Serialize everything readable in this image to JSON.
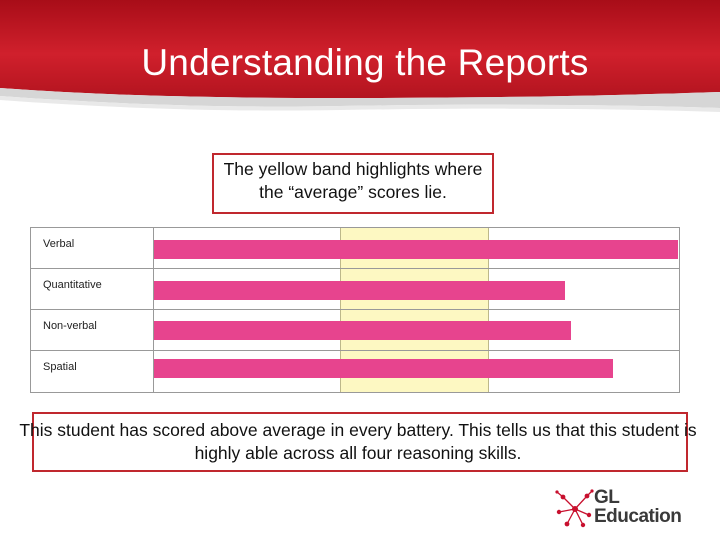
{
  "slide": {
    "title": "Understanding the Reports",
    "callout_top": "The yellow band highlights where the “average” scores lie.",
    "callout_bottom": "This student has scored above average in every battery. This tells us that this student is highly able across all four reasoning skills.",
    "logo": {
      "line1": "GL",
      "line2": "Education"
    },
    "colors": {
      "banner": "#c8102e",
      "bar": "#e7448e",
      "band": "#fdf8c2",
      "callout_border": "#c0282e"
    }
  },
  "chart_data": {
    "type": "bar",
    "orientation": "horizontal",
    "categories": [
      "Verbal",
      "Quantitative",
      "Non-verbal",
      "Spatial"
    ],
    "values": [
      100,
      78.5,
      79.5,
      87.5
    ],
    "average_band": [
      35.5,
      63.5
    ],
    "xlim": [
      0,
      100
    ],
    "grid": true
  }
}
